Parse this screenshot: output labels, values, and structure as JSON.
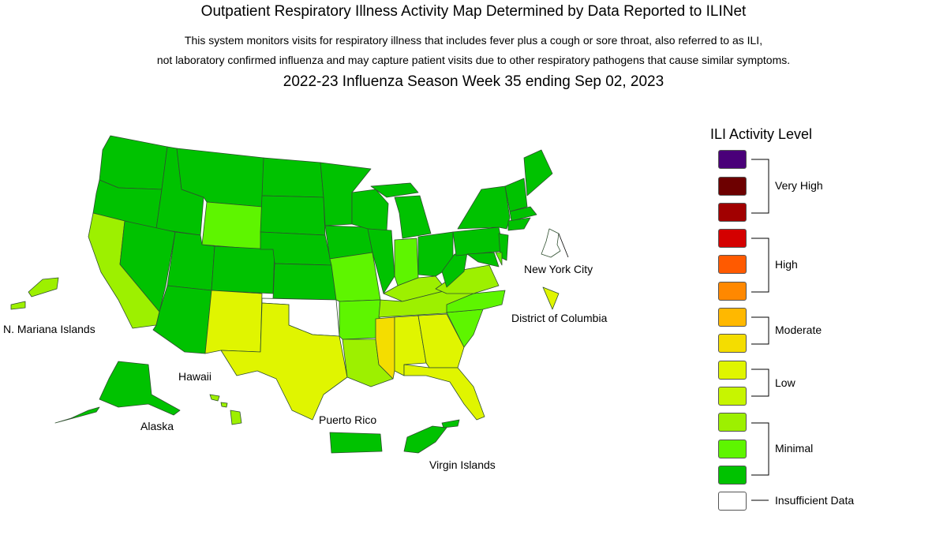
{
  "header": {
    "title": "Outpatient Respiratory Illness Activity Map Determined by Data Reported to ILINet",
    "desc_line1": "This system monitors visits for respiratory illness that includes fever plus a cough or sore throat, also referred to as ILI,",
    "desc_line2": "not laboratory confirmed influenza and may capture patient visits due to other respiratory pathogens that cause similar symptoms.",
    "week": "2022-23 Influenza Season Week 35 ending Sep 02, 2023"
  },
  "map": {
    "labels": {
      "nyc": "New York City",
      "dc": "District of Columbia",
      "nmi": "N. Mariana Islands",
      "hawaii": "Hawaii",
      "alaska": "Alaska",
      "pr": "Puerto Rico",
      "vi": "Virgin Islands"
    },
    "colors": {
      "minimal_dark": "#00c200",
      "minimal_mid": "#5ef500",
      "minimal_light": "#9df000",
      "low_light": "#c7f500",
      "low": "#e0f500",
      "moderate_low": "#f4dd00",
      "insufficient": "#ffffff"
    }
  },
  "legend": {
    "title": "ILI Activity Level",
    "swatches": [
      "#4a0079",
      "#6d0000",
      "#a10000",
      "#d40000",
      "#ff5a00",
      "#ff8800",
      "#ffb800",
      "#f4dd00",
      "#e0f500",
      "#c7f500",
      "#9df000",
      "#5ef500",
      "#00c200",
      "#ffffff"
    ],
    "groups": {
      "very_high": "Very High",
      "high": "High",
      "moderate": "Moderate",
      "low": "Low",
      "minimal": "Minimal",
      "insufficient": "Insufficient Data"
    }
  }
}
